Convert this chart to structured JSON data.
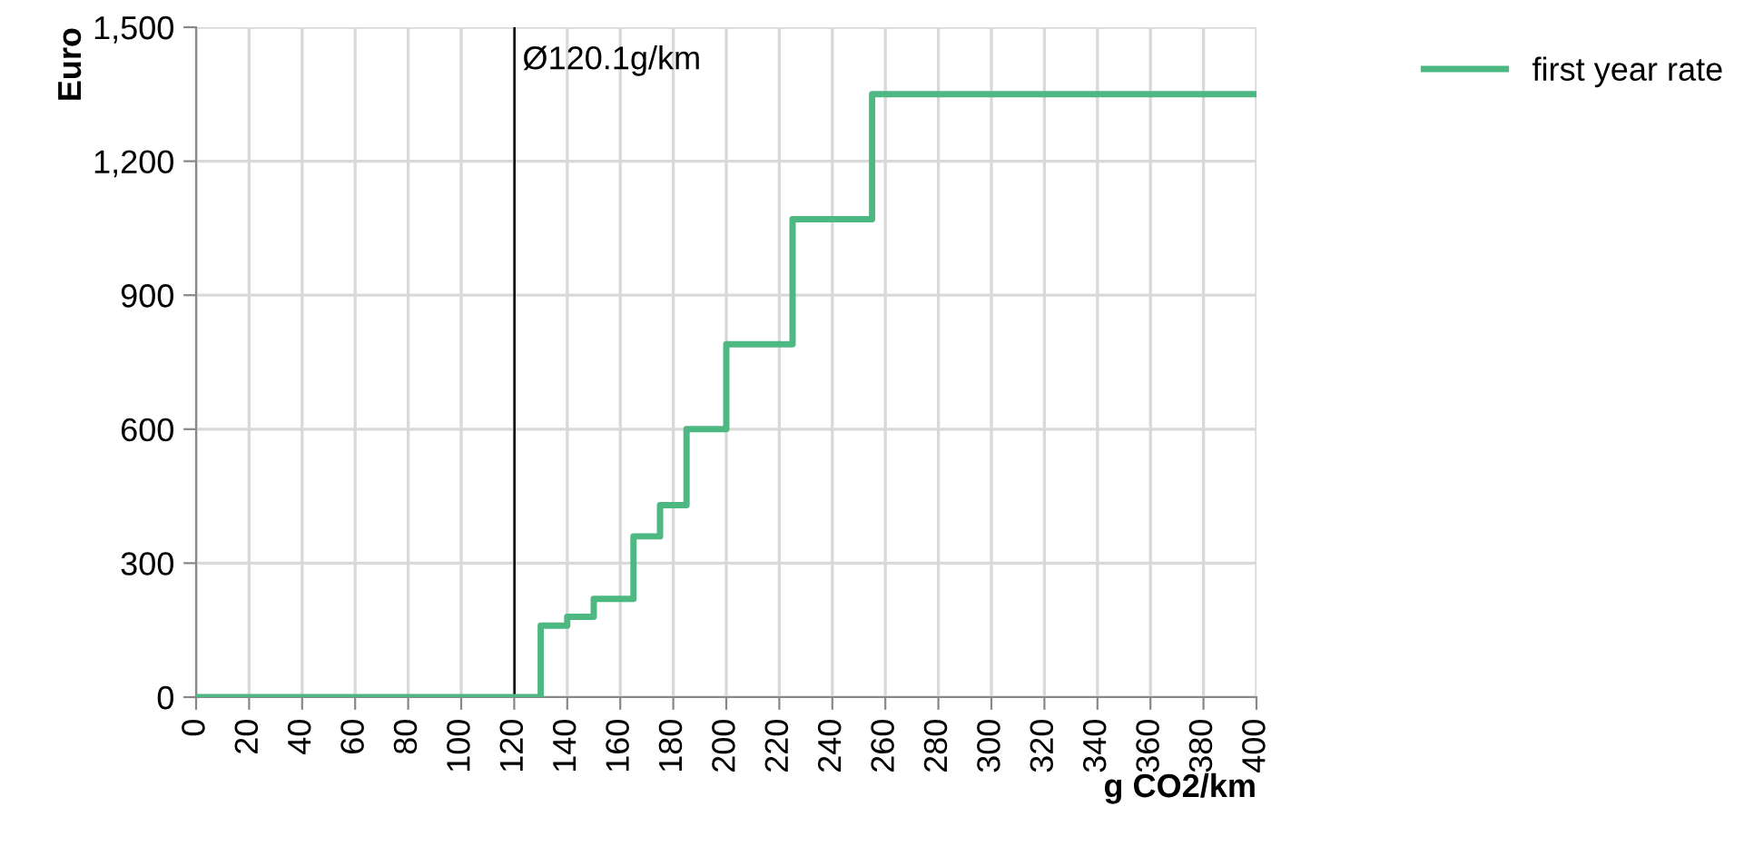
{
  "chart_data": {
    "type": "step",
    "xlabel": "g CO2/km",
    "ylabel": "Euro",
    "series": [
      {
        "name": "first year rate",
        "color": "#4db882",
        "x": [
          0,
          130,
          140,
          150,
          165,
          175,
          185,
          200,
          225,
          255,
          400
        ],
        "values": [
          0,
          160,
          180,
          220,
          360,
          430,
          600,
          790,
          1070,
          1350,
          1350
        ]
      }
    ],
    "xlim": [
      0,
      400
    ],
    "xticks": [
      0,
      20,
      40,
      60,
      80,
      100,
      120,
      140,
      160,
      180,
      200,
      220,
      240,
      260,
      280,
      300,
      320,
      340,
      360,
      380,
      400
    ],
    "ylim": [
      0,
      1500
    ],
    "yticks": [
      0,
      300,
      600,
      900,
      {
        "value": 1200,
        "label": "1,200"
      },
      {
        "value": 1500,
        "label": "1,500"
      }
    ],
    "ref_lines": [
      {
        "axis": "x",
        "value": 120.1,
        "label": "Ø120.1g/km",
        "color": "#000000"
      }
    ],
    "grid": true,
    "legend": "right",
    "marker": "none",
    "line_style": "solid"
  }
}
